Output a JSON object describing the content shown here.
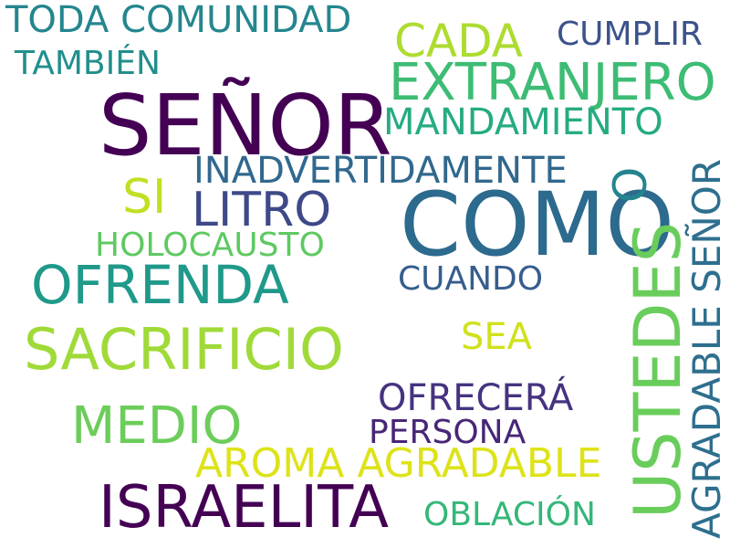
{
  "words": [
    {
      "text": "SEÑOR",
      "color": "#440154"
    },
    {
      "text": "COMO",
      "color": "#2c6a8e"
    },
    {
      "text": "USTEDES",
      "color": "#69cd5b"
    },
    {
      "text": "ISRAELITA",
      "color": "#440154"
    },
    {
      "text": "SACRIFICIO",
      "color": "#a0da39"
    },
    {
      "text": "OFRENDA",
      "color": "#1f998a"
    },
    {
      "text": "EXTRANJERO",
      "color": "#3dbc74"
    },
    {
      "text": "MEDIO",
      "color": "#6ccd5a"
    },
    {
      "text": "AGRADABLE SEÑOR",
      "color": "#2e6f8e"
    },
    {
      "text": "AROMA AGRADABLE",
      "color": "#dde318"
    },
    {
      "text": "TODA COMUNIDAD",
      "color": "#24868e"
    },
    {
      "text": "CADA",
      "color": "#addc30"
    },
    {
      "text": "O",
      "color": "#25848e"
    },
    {
      "text": "LITRO",
      "color": "#3e4989"
    },
    {
      "text": "INADVERTIDAMENTE",
      "color": "#31688e"
    },
    {
      "text": "MANDAMIENTO",
      "color": "#25ab82"
    },
    {
      "text": "SI",
      "color": "#c2df23"
    },
    {
      "text": "OFRECERÁ",
      "color": "#46337f"
    },
    {
      "text": "HOLOCAUSTO",
      "color": "#5ec962"
    },
    {
      "text": "CUMPLIR",
      "color": "#3b528b"
    },
    {
      "text": "TAMBIÉN",
      "color": "#218f8d"
    },
    {
      "text": "CUANDO",
      "color": "#365d8d"
    },
    {
      "text": "SEA",
      "color": "#d0e11c"
    },
    {
      "text": "PERSONA",
      "color": "#482677"
    },
    {
      "text": "OBLACIÓN",
      "color": "#35b779"
    }
  ]
}
